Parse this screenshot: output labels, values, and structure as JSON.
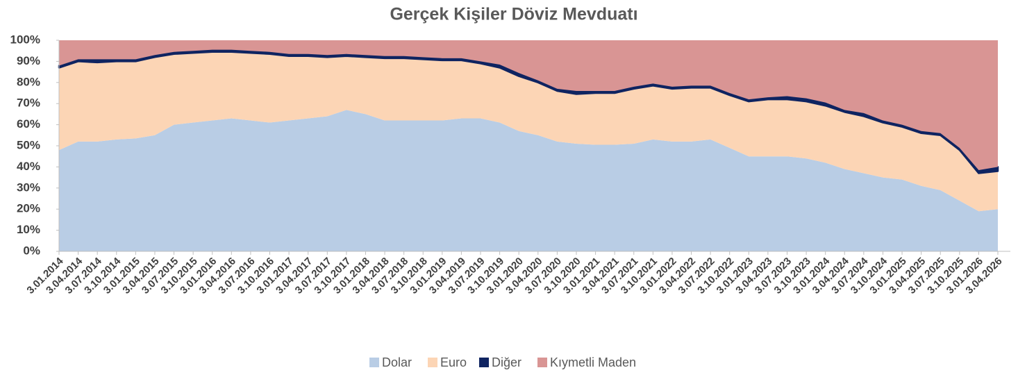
{
  "chart_data": {
    "type": "stacked_area",
    "title": "Gerçek Kişiler Döviz Mevduatı",
    "categories": [
      "3.01.2014",
      "3.04.2014",
      "3.07.2014",
      "3.10.2014",
      "3.01.2015",
      "3.04.2015",
      "3.07.2015",
      "3.10.2015",
      "3.01.2016",
      "3.04.2016",
      "3.07.2016",
      "3.10.2016",
      "3.01.2017",
      "3.04.2017",
      "3.07.2017",
      "3.10.2017",
      "3.01.2018",
      "3.04.2018",
      "3.07.2018",
      "3.10.2018",
      "3.01.2019",
      "3.04.2019",
      "3.07.2019",
      "3.10.2019",
      "3.01.2020",
      "3.04.2020",
      "3.07.2020",
      "3.10.2020",
      "3.01.2021",
      "3.04.2021",
      "3.07.2021",
      "3.10.2021",
      "3.01.2022",
      "3.04.2022",
      "3.07.2022",
      "3.10.2022",
      "3.01.2023",
      "3.04.2023",
      "3.07.2023",
      "3.10.2023",
      "3.01.2024",
      "3.04.2024",
      "3.07.2024",
      "3.10.2024",
      "3.01.2025",
      "3.04.2025",
      "3.07.2025",
      "3.10.2025",
      "3.01.2026",
      "3.04.2026"
    ],
    "series": [
      {
        "name": "Dolar",
        "color": "#b9cde5",
        "values": [
          48,
          52,
          52,
          53,
          53.5,
          55,
          60,
          61,
          62,
          63,
          62,
          61,
          62,
          63,
          64,
          67,
          65,
          62,
          62,
          62,
          62,
          63,
          63,
          61,
          57,
          55,
          52,
          51,
          50.5,
          50.5,
          51,
          53,
          52,
          52,
          53,
          49,
          45,
          45,
          45,
          44,
          42,
          39,
          37,
          35,
          34,
          31,
          29,
          24,
          19,
          20
        ]
      },
      {
        "name": "Euro",
        "color": "#fcd5b5",
        "values": [
          39,
          38,
          37.5,
          37,
          36.5,
          37,
          33.5,
          33,
          32.5,
          31.5,
          32,
          32.5,
          30.5,
          29.5,
          28,
          25.5,
          27,
          29.5,
          29.5,
          29,
          28.5,
          27.5,
          26,
          26,
          26,
          25,
          24,
          23.5,
          24.5,
          24.5,
          26,
          25.5,
          25,
          25.5,
          24.5,
          25,
          26,
          27,
          27,
          27,
          27,
          27,
          27,
          26,
          25,
          25,
          26,
          24,
          18,
          18
        ]
      },
      {
        "name": "Diğer",
        "color": "#0f2461",
        "values": [
          1,
          1,
          1.5,
          1,
          1,
          1,
          1,
          1,
          1,
          1,
          1,
          1,
          1,
          1,
          1,
          1,
          1,
          1,
          1,
          1,
          1,
          1,
          1,
          1.5,
          1.5,
          1,
          1,
          1.5,
          1,
          1,
          1,
          1,
          1,
          1,
          1,
          1,
          1,
          1,
          1.5,
          1.5,
          1.5,
          1,
          1.5,
          1,
          1,
          1,
          1,
          1,
          1.5,
          2
        ]
      },
      {
        "name": "Kıymetli Maden",
        "color": "#d99594",
        "values": [
          12,
          9,
          9,
          9,
          9,
          7,
          5.5,
          5,
          4.5,
          4.5,
          5,
          5.5,
          6.5,
          6.5,
          7,
          6.5,
          7,
          7.5,
          7.5,
          8,
          8.5,
          8.5,
          10,
          11.5,
          15.5,
          19,
          23,
          24,
          24,
          24,
          22,
          20.5,
          22,
          21.5,
          21.5,
          25,
          28,
          27,
          26.5,
          27.5,
          29.5,
          33,
          34.5,
          38,
          40,
          43,
          44,
          51,
          61.5,
          60
        ]
      }
    ],
    "ylim": [
      0,
      100
    ],
    "yticks": [
      {
        "value": 0,
        "label": "0%"
      },
      {
        "value": 10,
        "label": "10%"
      },
      {
        "value": 20,
        "label": "20%"
      },
      {
        "value": 30,
        "label": "30%"
      },
      {
        "value": 40,
        "label": "40%"
      },
      {
        "value": 50,
        "label": "50%"
      },
      {
        "value": 60,
        "label": "60%"
      },
      {
        "value": 70,
        "label": "70%"
      },
      {
        "value": 80,
        "label": "80%"
      },
      {
        "value": 90,
        "label": "90%"
      },
      {
        "value": 100,
        "label": "100%"
      }
    ],
    "legend": "bottom"
  }
}
